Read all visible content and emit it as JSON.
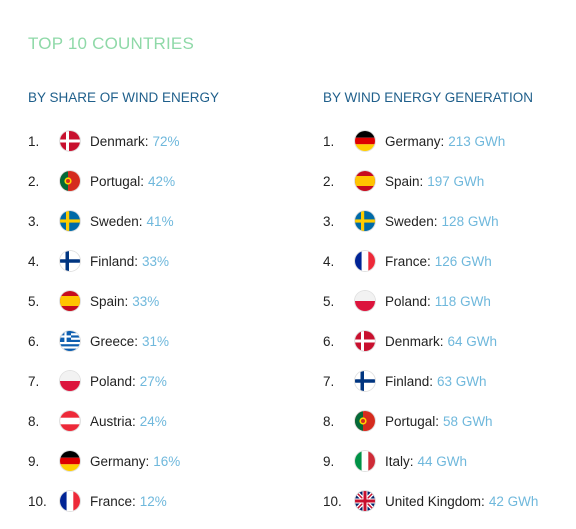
{
  "title": "TOP 10 COUNTRIES",
  "share": {
    "heading": "BY SHARE OF WIND ENERGY",
    "rows": [
      {
        "rank": "1.",
        "country": "Denmark:",
        "value": "72%",
        "flag": "denmark-flag-icon"
      },
      {
        "rank": "2.",
        "country": "Portugal:",
        "value": "42%",
        "flag": "portugal-flag-icon"
      },
      {
        "rank": "3.",
        "country": "Sweden:",
        "value": "41%",
        "flag": "sweden-flag-icon"
      },
      {
        "rank": "4.",
        "country": "Finland:",
        "value": "33%",
        "flag": "finland-flag-icon"
      },
      {
        "rank": "5.",
        "country": "Spain:",
        "value": "33%",
        "flag": "spain-flag-icon"
      },
      {
        "rank": "6.",
        "country": "Greece:",
        "value": "31%",
        "flag": "greece-flag-icon"
      },
      {
        "rank": "7.",
        "country": "Poland:",
        "value": "27%",
        "flag": "poland-flag-icon"
      },
      {
        "rank": "8.",
        "country": "Austria:",
        "value": "24%",
        "flag": "austria-flag-icon"
      },
      {
        "rank": "9.",
        "country": "Germany:",
        "value": "16%",
        "flag": "germany-flag-icon"
      },
      {
        "rank": "10.",
        "country": "France:",
        "value": "12%",
        "flag": "france-flag-icon"
      }
    ]
  },
  "generation": {
    "heading": "BY WIND ENERGY GENERATION",
    "rows": [
      {
        "rank": "1.",
        "country": "Germany:",
        "value": "213 GWh",
        "flag": "germany-flag-icon"
      },
      {
        "rank": "2.",
        "country": "Spain:",
        "value": "197 GWh",
        "flag": "spain-flag-icon"
      },
      {
        "rank": "3.",
        "country": "Sweden:",
        "value": "128 GWh",
        "flag": "sweden-flag-icon"
      },
      {
        "rank": "4.",
        "country": "France:",
        "value": "126 GWh",
        "flag": "france-flag-icon"
      },
      {
        "rank": "5.",
        "country": "Poland:",
        "value": "118 GWh",
        "flag": "poland-flag-icon"
      },
      {
        "rank": "6.",
        "country": "Denmark:",
        "value": "64 GWh",
        "flag": "denmark-flag-icon"
      },
      {
        "rank": "7.",
        "country": "Finland:",
        "value": "63 GWh",
        "flag": "finland-flag-icon"
      },
      {
        "rank": "8.",
        "country": "Portugal:",
        "value": "58 GWh",
        "flag": "portugal-flag-icon"
      },
      {
        "rank": "9.",
        "country": "Italy:",
        "value": "44 GWh",
        "flag": "italy-flag-icon"
      },
      {
        "rank": "10.",
        "country": "United Kingdom:",
        "value": "42 GWh",
        "flag": "united-kingdom-flag-icon"
      }
    ]
  },
  "colors": {
    "title": "#8fd9a8",
    "heading": "#1f5f8b",
    "value": "#6fb8dc"
  }
}
